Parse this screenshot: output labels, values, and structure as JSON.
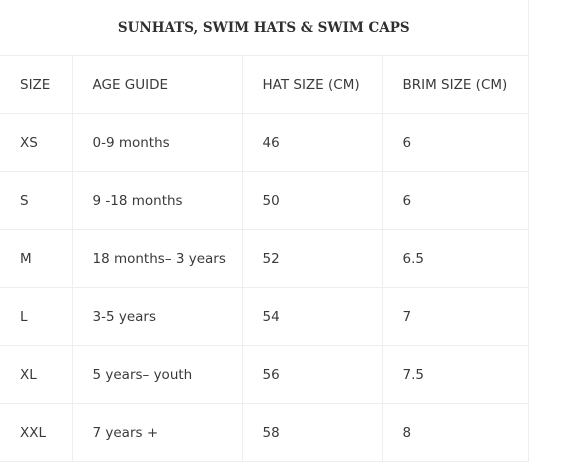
{
  "table": {
    "title": "SUNHATS, SWIM HATS & SWIM CAPS",
    "header": [
      "SIZE",
      "AGE GUIDE",
      "HAT SIZE (CM)",
      "BRIM SIZE (CM)"
    ],
    "rows": [
      [
        "XS",
        "0-9 months",
        "46",
        "6"
      ],
      [
        "S",
        "9 -18 months",
        "50",
        "6"
      ],
      [
        "M",
        "18 months– 3 years",
        "52",
        "6.5"
      ],
      [
        "L",
        "3-5 years",
        "54",
        "7"
      ],
      [
        "XL",
        "5 years– youth",
        "56",
        "7.5"
      ],
      [
        "XXL",
        "7 years +",
        "58",
        "8"
      ]
    ]
  }
}
